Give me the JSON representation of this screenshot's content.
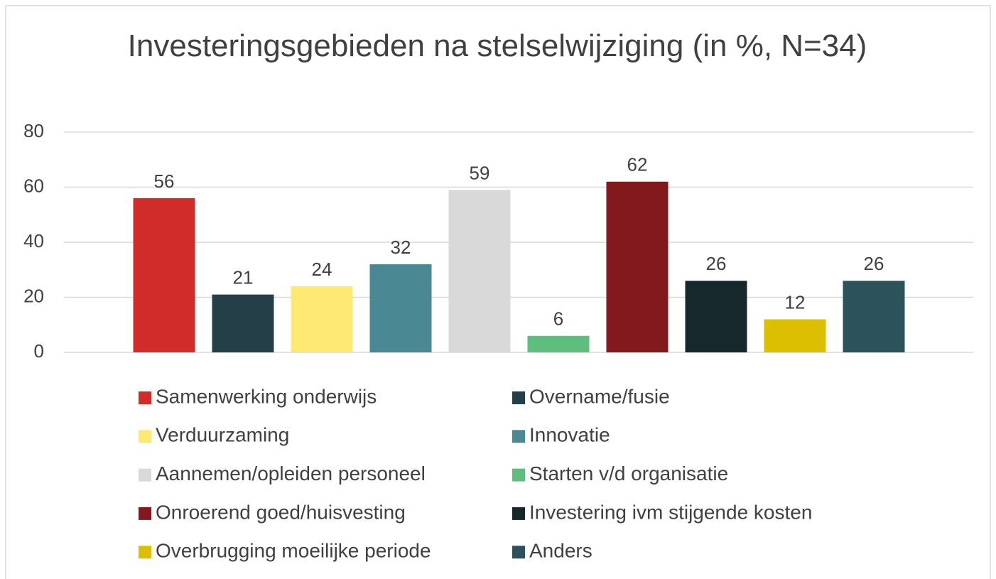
{
  "chart_data": {
    "type": "bar",
    "title": "Investeringsgebieden na stelselwijziging (in %, N=34)",
    "ylim": [
      0,
      80
    ],
    "yticks": [
      0,
      20,
      40,
      60,
      80
    ],
    "grid": true,
    "legend": "bottom",
    "series": [
      {
        "name": "Samenwerking onderwijs",
        "color": "#d12c2a",
        "values": [
          56
        ]
      },
      {
        "name": "Overname/fusie",
        "color": "#243f47",
        "values": [
          21
        ]
      },
      {
        "name": "Verduurzaming",
        "color": "#fde972",
        "values": [
          24
        ]
      },
      {
        "name": "Innovatie",
        "color": "#4a8894",
        "values": [
          32
        ]
      },
      {
        "name": "Aannemen/opleiden personeel",
        "color": "#d9d9d9",
        "values": [
          59
        ]
      },
      {
        "name": "Starten v/d organisatie",
        "color": "#5fbe7d",
        "values": [
          6
        ]
      },
      {
        "name": "Onroerend goed/huisvesting",
        "color": "#82191c",
        "values": [
          62
        ]
      },
      {
        "name": "Investering ivm stijgende kosten",
        "color": "#17282d",
        "values": [
          26
        ]
      },
      {
        "name": "Overbrugging moeilijke periode",
        "color": "#dcc000",
        "values": [
          12
        ]
      },
      {
        "name": "Anders",
        "color": "#2c525c",
        "values": [
          26
        ]
      }
    ]
  }
}
